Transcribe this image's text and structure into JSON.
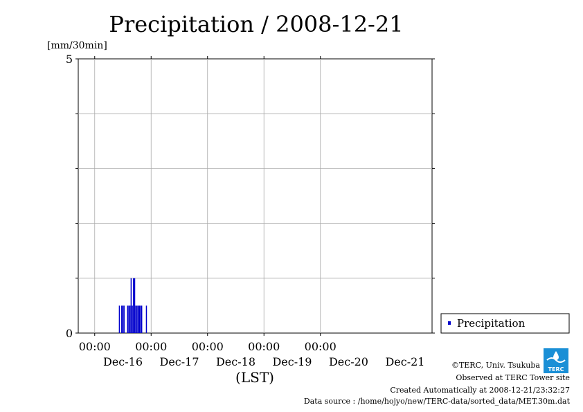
{
  "chart_data": {
    "type": "bar",
    "title": "Precipitation / 2008-12-21",
    "ylabel": "[mm/30min]",
    "xlabel": "(LST)",
    "ylim": [
      0,
      5
    ],
    "yticks": [
      "0",
      "5"
    ],
    "xlim": [
      "2008-12-15 17:00",
      "2008-12-21 23:30"
    ],
    "x_ticks": [
      {
        "time": "2008-12-16 00:00",
        "label": "00:00"
      },
      {
        "time": "2008-12-17 00:00",
        "label": "00:00"
      },
      {
        "time": "2008-12-18 00:00",
        "label": "00:00"
      },
      {
        "time": "2008-12-19 00:00",
        "label": "00:00"
      },
      {
        "time": "2008-12-20 00:00",
        "label": "00:00"
      }
    ],
    "x_day_labels": [
      {
        "time": "2008-12-16 12:00",
        "label": "Dec-16"
      },
      {
        "time": "2008-12-17 12:00",
        "label": "Dec-17"
      },
      {
        "time": "2008-12-18 12:00",
        "label": "Dec-18"
      },
      {
        "time": "2008-12-19 12:00",
        "label": "Dec-19"
      },
      {
        "time": "2008-12-20 12:00",
        "label": "Dec-20"
      },
      {
        "time": "2008-12-21 12:00",
        "label": "Dec-21"
      }
    ],
    "grid": true,
    "legend": {
      "position": "right",
      "entries": [
        "Precipitation"
      ]
    },
    "series": [
      {
        "name": "Precipitation",
        "color": "#0000cc",
        "points": [
          {
            "t": "2008-12-16 10:30",
            "v": 0.5
          },
          {
            "t": "2008-12-16 11:30",
            "v": 0.5
          },
          {
            "t": "2008-12-16 12:00",
            "v": 0.5
          },
          {
            "t": "2008-12-16 12:30",
            "v": 0.5
          },
          {
            "t": "2008-12-16 14:00",
            "v": 0.5
          },
          {
            "t": "2008-12-16 14:30",
            "v": 0.5
          },
          {
            "t": "2008-12-16 15:00",
            "v": 0.5
          },
          {
            "t": "2008-12-16 15:30",
            "v": 1.0
          },
          {
            "t": "2008-12-16 16:00",
            "v": 0.5
          },
          {
            "t": "2008-12-16 16:30",
            "v": 1.0
          },
          {
            "t": "2008-12-16 17:00",
            "v": 1.0
          },
          {
            "t": "2008-12-16 17:30",
            "v": 0.5
          },
          {
            "t": "2008-12-16 18:00",
            "v": 0.5
          },
          {
            "t": "2008-12-16 18:30",
            "v": 0.5
          },
          {
            "t": "2008-12-16 19:00",
            "v": 0.5
          },
          {
            "t": "2008-12-16 19:30",
            "v": 0.5
          },
          {
            "t": "2008-12-16 20:00",
            "v": 0.5
          },
          {
            "t": "2008-12-16 22:00",
            "v": 0.5
          }
        ]
      }
    ]
  },
  "credits": [
    "©TERC, Univ. Tsukuba",
    "Observed at TERC Tower site",
    "Created Automatically at 2008-12-21/23:32:27",
    "Data source : /home/hojyo/new/TERC-data/sorted_data/MET.30m.dat"
  ],
  "logo": {
    "text": "TERC",
    "color": "#1a8fd6"
  },
  "colors": {
    "bar": "#0000cc",
    "grid": "#aaaaaa",
    "axis": "#000000"
  }
}
